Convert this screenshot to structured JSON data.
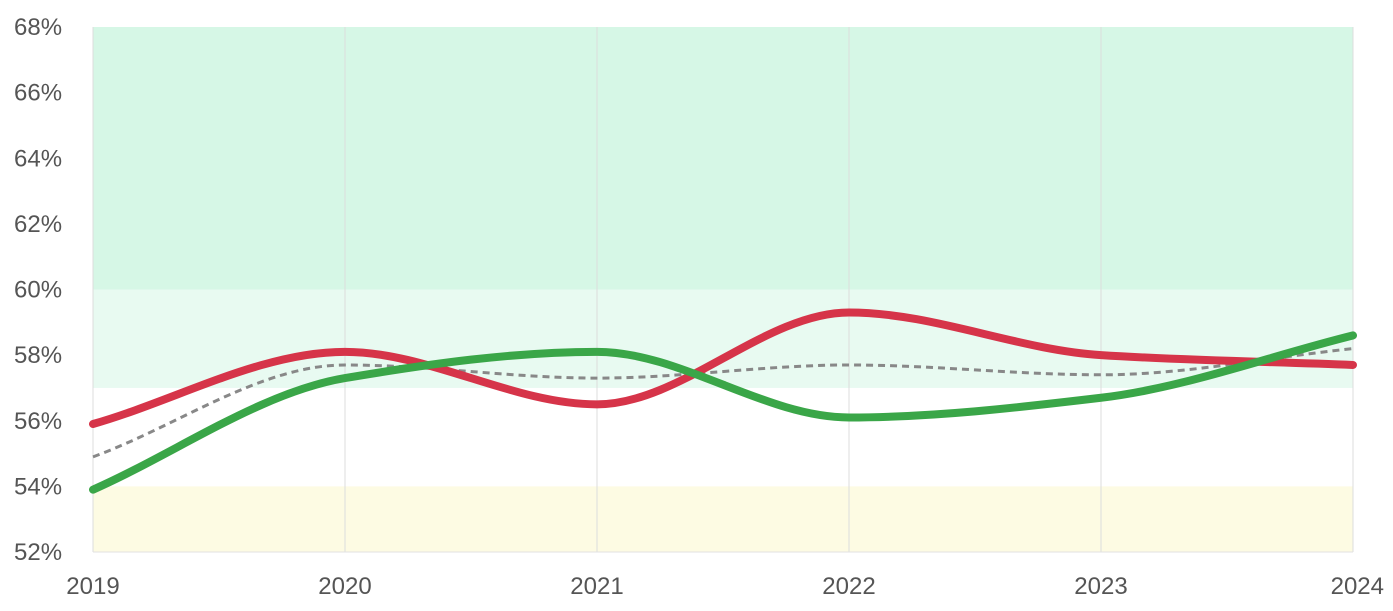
{
  "chart_data": {
    "type": "line",
    "x": [
      "2019",
      "2020",
      "2021",
      "2022",
      "2023",
      "2024"
    ],
    "ylim": [
      52,
      68
    ],
    "y_ticks": [
      "52%",
      "54%",
      "56%",
      "58%",
      "60%",
      "62%",
      "64%",
      "66%",
      "68%"
    ],
    "y_tick_values": [
      52,
      54,
      56,
      58,
      60,
      62,
      64,
      66,
      68
    ],
    "grid": "vertical",
    "bands": [
      {
        "from": 60,
        "to": 68,
        "color": "#d6f7e6"
      },
      {
        "from": 57,
        "to": 60,
        "color": "#e8faf1"
      },
      {
        "from": 52,
        "to": 54,
        "color": "#fdfbe3"
      }
    ],
    "series": [
      {
        "color": "#d63449",
        "style": "solid",
        "values": [
          55.9,
          58.1,
          56.5,
          59.3,
          58.0,
          57.7
        ]
      },
      {
        "color": "#3aa648",
        "style": "solid",
        "values": [
          53.9,
          57.3,
          58.1,
          56.1,
          56.7,
          58.6
        ]
      },
      {
        "color": "#888888",
        "style": "dashed",
        "values": [
          54.9,
          57.7,
          57.3,
          57.7,
          57.4,
          58.2
        ]
      }
    ]
  }
}
